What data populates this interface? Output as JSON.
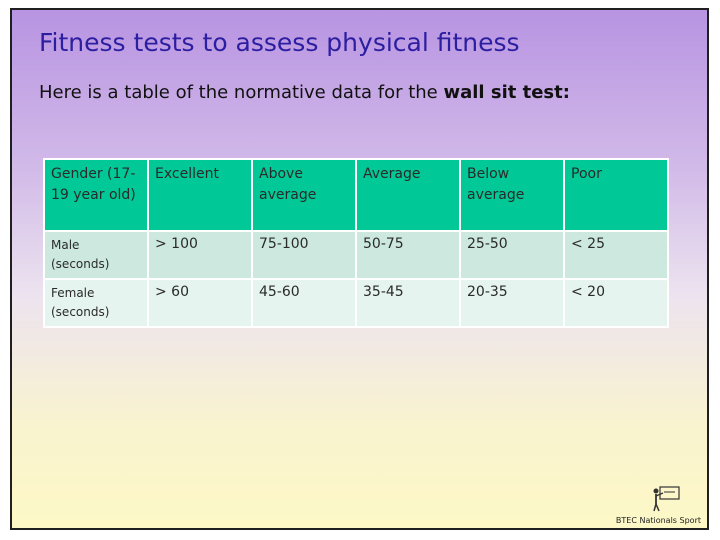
{
  "title": "Fitness tests to assess physical fitness",
  "intro": {
    "prefix": "Here is a table of the normative data for the ",
    "emphasis": "wall sit test:"
  },
  "table": {
    "headers": [
      "Gender (17-19 year old)",
      "Excellent",
      "Above average",
      "Average",
      "Below average",
      "Poor"
    ],
    "rows": [
      {
        "label": "Male (seconds)",
        "values": [
          "> 100",
          "75-100",
          "50-75",
          "25-50",
          "< 25"
        ]
      },
      {
        "label": "Female (seconds)",
        "values": [
          "> 60",
          "45-60",
          "35-45",
          "20-35",
          "< 20"
        ]
      }
    ]
  },
  "logo": {
    "text": "BTEC Nationals Sport",
    "icon": "teacher-at-board-icon"
  },
  "colors": {
    "title": "#2c1ea0",
    "header_fill": "#00c896",
    "row_fill_1": "#cde9df",
    "row_fill_2": "#e6f4ef"
  }
}
